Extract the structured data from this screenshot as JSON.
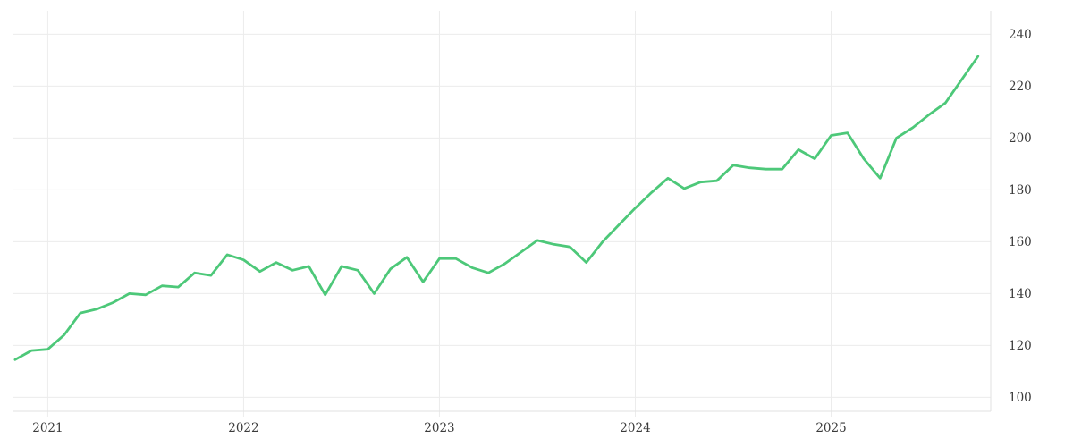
{
  "chart_data": {
    "type": "line",
    "title": "",
    "xlabel": "",
    "ylabel": "",
    "grid": true,
    "legend": "none",
    "y_axis_side": "right",
    "x_ticks": [
      "2021",
      "2022",
      "2023",
      "2024",
      "2025"
    ],
    "y_ticks": [
      240,
      220,
      200,
      180,
      160,
      140,
      120,
      100
    ],
    "xlim_decimal_years": [
      2020.82,
      2025.815
    ],
    "ylim": [
      94.6,
      249.1
    ],
    "line_color": "#4dc879",
    "grid_color": "#ececec",
    "axis_line_color": "#e2e2e2",
    "series": [
      {
        "name": "value",
        "color": "#4dc879",
        "dates": [
          "2020-11",
          "2020-12",
          "2021-01",
          "2021-02",
          "2021-03",
          "2021-04",
          "2021-05",
          "2021-06",
          "2021-07",
          "2021-08",
          "2021-09",
          "2021-10",
          "2021-11",
          "2021-12",
          "2022-01",
          "2022-02",
          "2022-03",
          "2022-04",
          "2022-05",
          "2022-06",
          "2022-07",
          "2022-08",
          "2022-09",
          "2022-10",
          "2022-11",
          "2022-12",
          "2023-01",
          "2023-02",
          "2023-03",
          "2023-04",
          "2023-05",
          "2023-06",
          "2023-07",
          "2023-08",
          "2023-09",
          "2023-10",
          "2023-11",
          "2023-12",
          "2024-01",
          "2024-02",
          "2024-03",
          "2024-04",
          "2024-05",
          "2024-06",
          "2024-07",
          "2024-08",
          "2024-09",
          "2024-10",
          "2024-11",
          "2024-12",
          "2025-01",
          "2025-02",
          "2025-03",
          "2025-04",
          "2025-05",
          "2025-06",
          "2025-07",
          "2025-08",
          "2025-09",
          "2025-10"
        ],
        "values": [
          114.5,
          118,
          118.5,
          124,
          132.5,
          134,
          136.5,
          140,
          139.5,
          143,
          142.5,
          148,
          147,
          155,
          153,
          148.5,
          152,
          149,
          150.5,
          139.5,
          150.5,
          149,
          140,
          149.5,
          154,
          144.5,
          153.5,
          153.5,
          150,
          148,
          151.5,
          156,
          160.5,
          159,
          158,
          152,
          160,
          166.5,
          173,
          179,
          184.5,
          180.5,
          183,
          183.5,
          189.5,
          188.5,
          188,
          188,
          195.5,
          192,
          201,
          202,
          192,
          184.5,
          200,
          204,
          209,
          213.5,
          222.5,
          231.5
        ]
      }
    ]
  }
}
